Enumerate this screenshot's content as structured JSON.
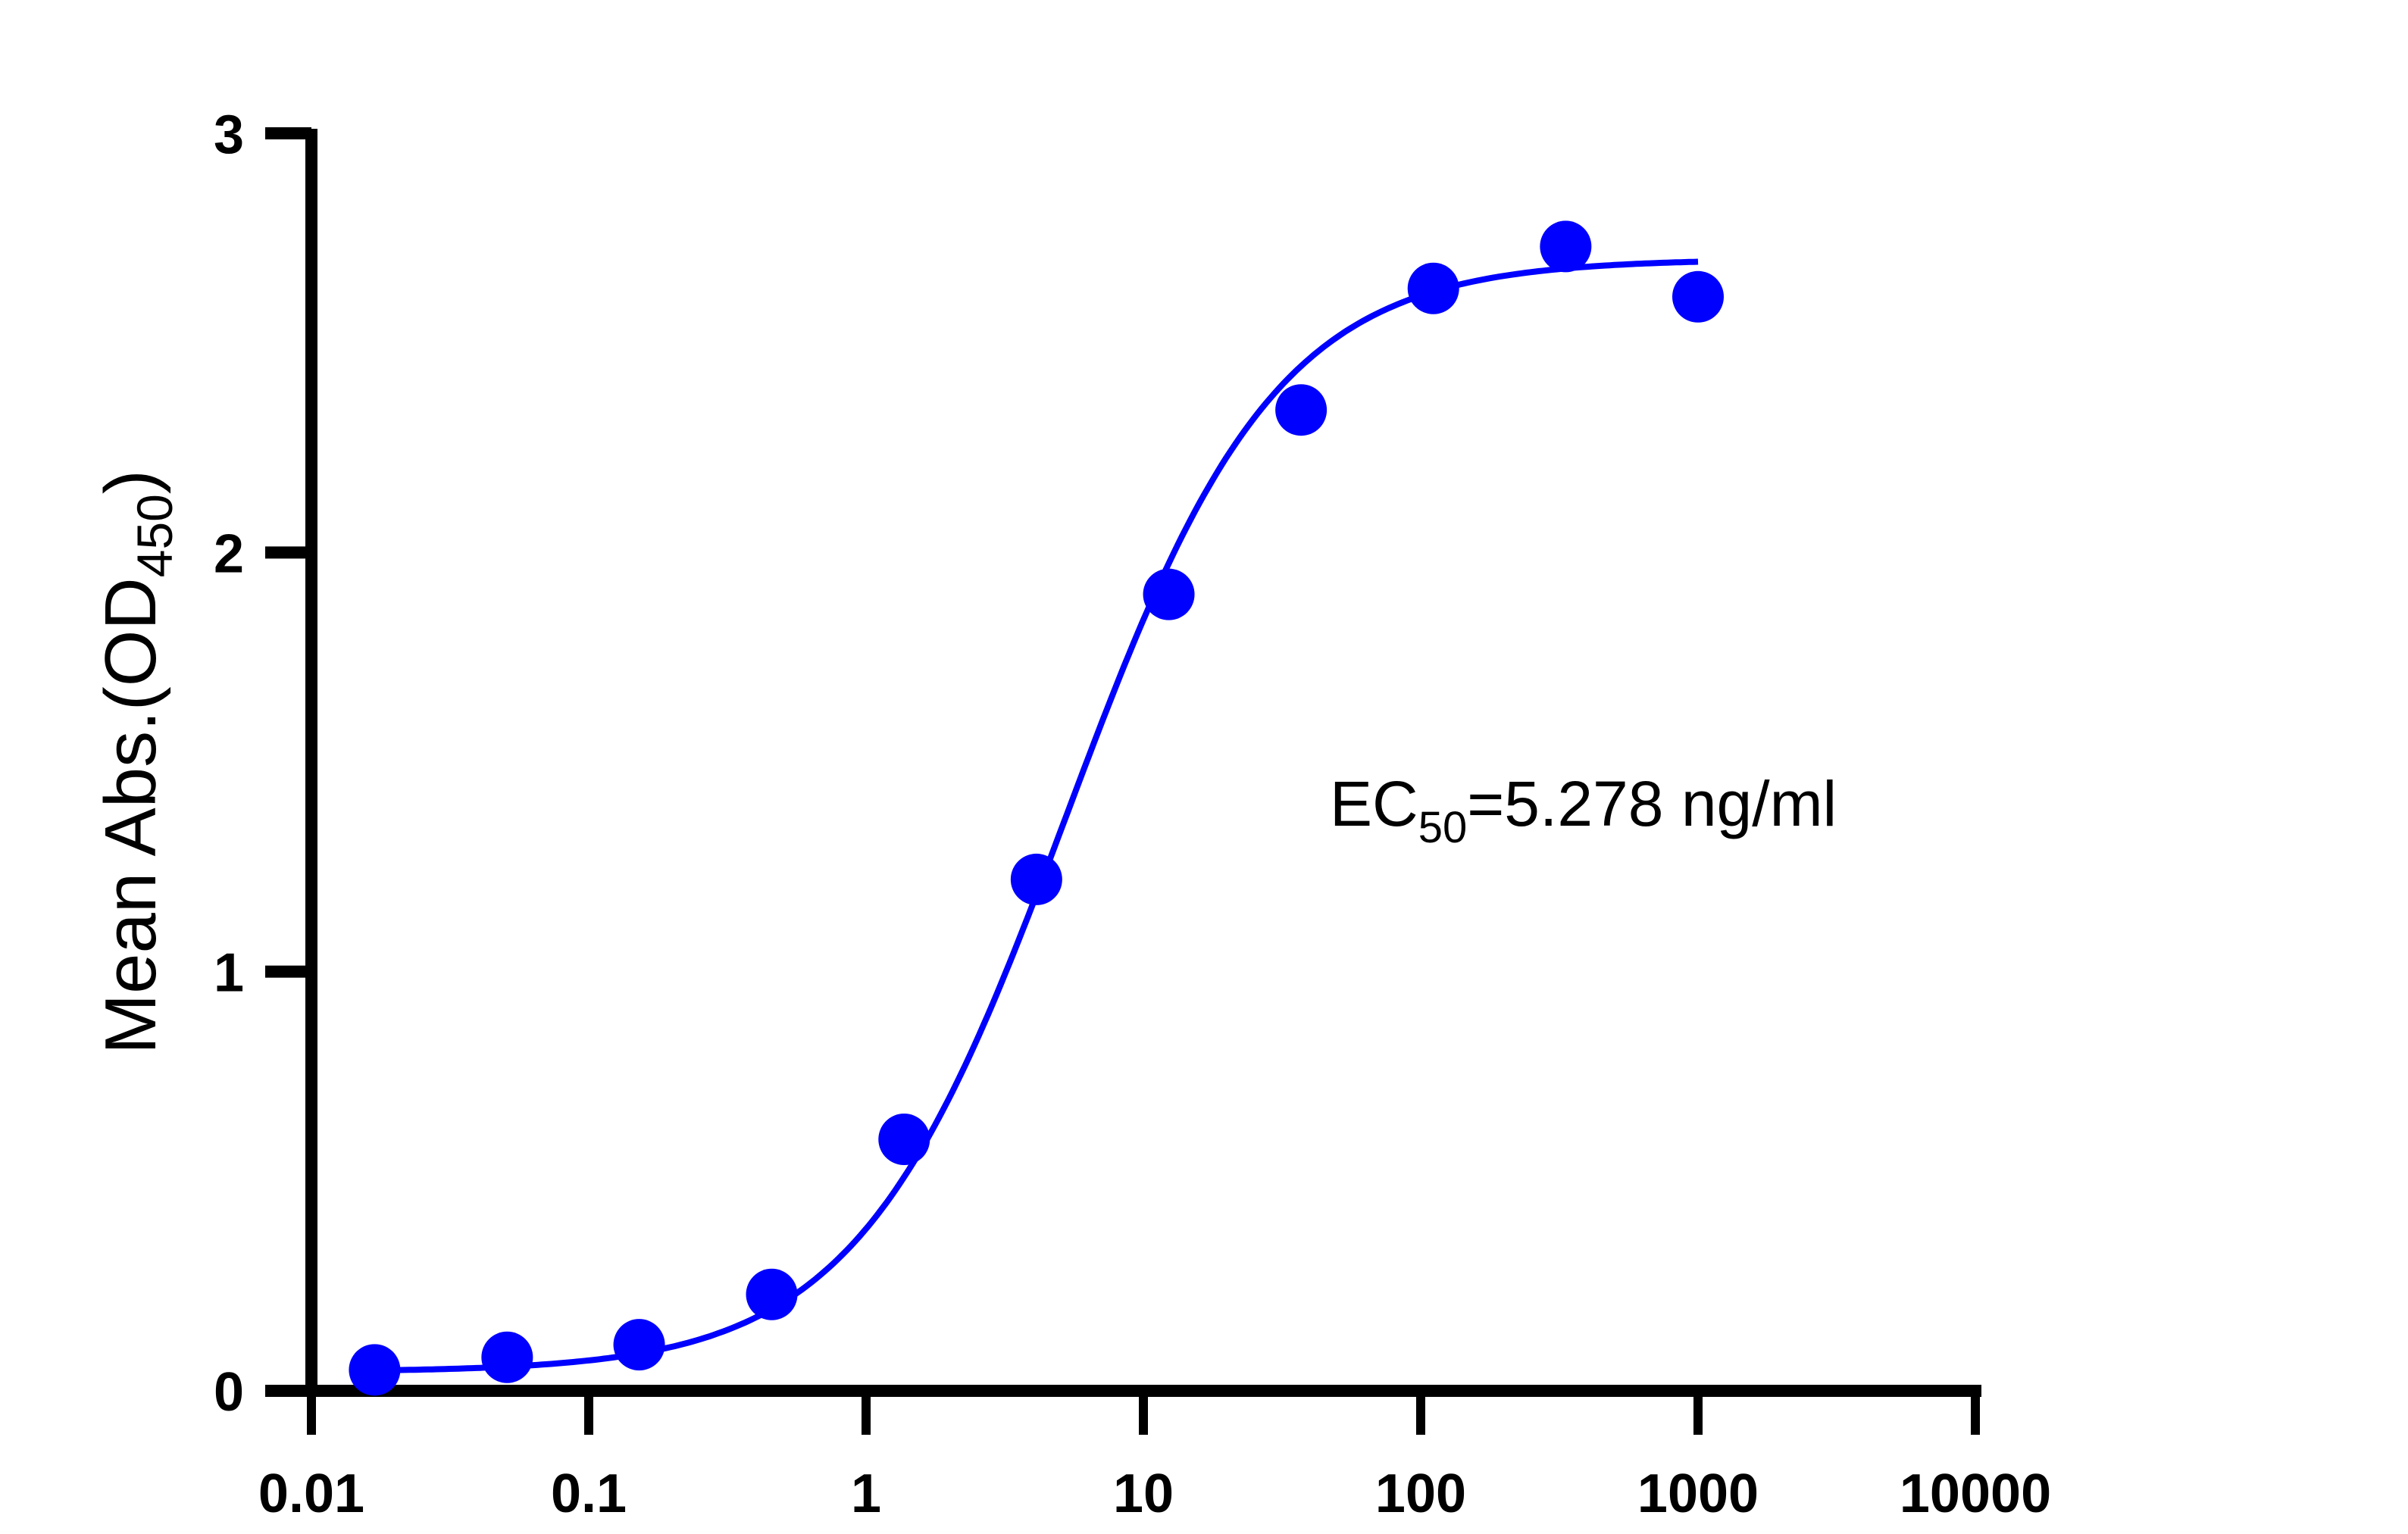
{
  "chart_data": {
    "type": "scatter",
    "title": "",
    "xlabel": "",
    "ylabel": "Mean Abs.(OD450)",
    "ylabel_parts": {
      "main": "Mean Abs.(OD",
      "sub": "450",
      "close": ")"
    },
    "xscale": "log",
    "xlim": [
      0.01,
      10000
    ],
    "ylim": [
      0,
      3
    ],
    "x_ticks": [
      "0.01",
      "0.1",
      "1",
      "10",
      "100",
      "1000",
      "10000"
    ],
    "y_ticks": [
      "0",
      "1",
      "2",
      "3"
    ],
    "grid": false,
    "legend": null,
    "series": [
      {
        "name": "Mean Abs.",
        "color": "#0000ff",
        "x": [
          0.0169,
          0.0508,
          0.152,
          0.457,
          1.372,
          4.115,
          12.35,
          37.04,
          111.1,
          333.3,
          1000
        ],
        "y": [
          0.05,
          0.08,
          0.11,
          0.23,
          0.6,
          1.22,
          1.9,
          2.34,
          2.63,
          2.73,
          2.61
        ]
      }
    ],
    "fit": {
      "type": "4PL sigmoid",
      "color": "#0000ff",
      "bottom": 0.045,
      "top": 2.7,
      "ec50": 5.278,
      "hill": 1.15
    },
    "annotations": [
      {
        "text": "EC50=5.278 ng/ml",
        "parts": {
          "pre": "EC",
          "sub": "50",
          "post": "=5.278 ng/ml"
        }
      }
    ]
  }
}
